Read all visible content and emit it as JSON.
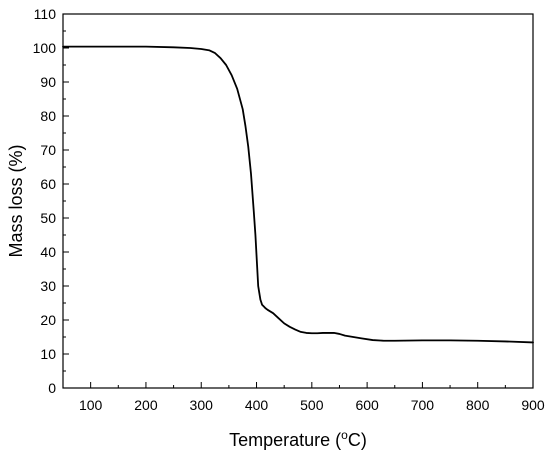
{
  "chart_data": {
    "type": "line",
    "xlabel": "Temperature (",
    "xlabel_sup": "o",
    "xlabel_tail": "C)",
    "ylabel": "Mass loss (%)",
    "xlim": [
      50,
      900
    ],
    "ylim": [
      0,
      110
    ],
    "x_ticks": [
      100,
      200,
      300,
      400,
      500,
      600,
      700,
      800,
      900
    ],
    "y_ticks": [
      0,
      10,
      20,
      30,
      40,
      50,
      60,
      70,
      80,
      90,
      100,
      110
    ],
    "grid": false,
    "line_color": "#000000",
    "series": [
      {
        "x": [
          50,
          100,
          150,
          200,
          250,
          280,
          300,
          315,
          325,
          335,
          345,
          355,
          365,
          375,
          380,
          385,
          390,
          395,
          398,
          401,
          403,
          405,
          407,
          410,
          413,
          416,
          420,
          430,
          440,
          450,
          460,
          470,
          480,
          490,
          500,
          510,
          520,
          530,
          540,
          550,
          560,
          575,
          590,
          610,
          630,
          650,
          700,
          750,
          800,
          850,
          900
        ],
        "y": [
          100.4,
          100.4,
          100.4,
          100.4,
          100.2,
          100,
          99.7,
          99.3,
          98.5,
          97,
          95,
          92,
          88,
          82,
          77,
          71,
          63,
          52,
          45,
          36,
          30,
          28,
          26,
          24.5,
          24,
          23.5,
          23,
          22,
          20.5,
          19,
          18,
          17.2,
          16.5,
          16.2,
          16.1,
          16.1,
          16.2,
          16.2,
          16.2,
          15.9,
          15.4,
          15,
          14.6,
          14.1,
          13.9,
          13.9,
          14,
          14,
          13.9,
          13.7,
          13.4
        ]
      }
    ]
  }
}
